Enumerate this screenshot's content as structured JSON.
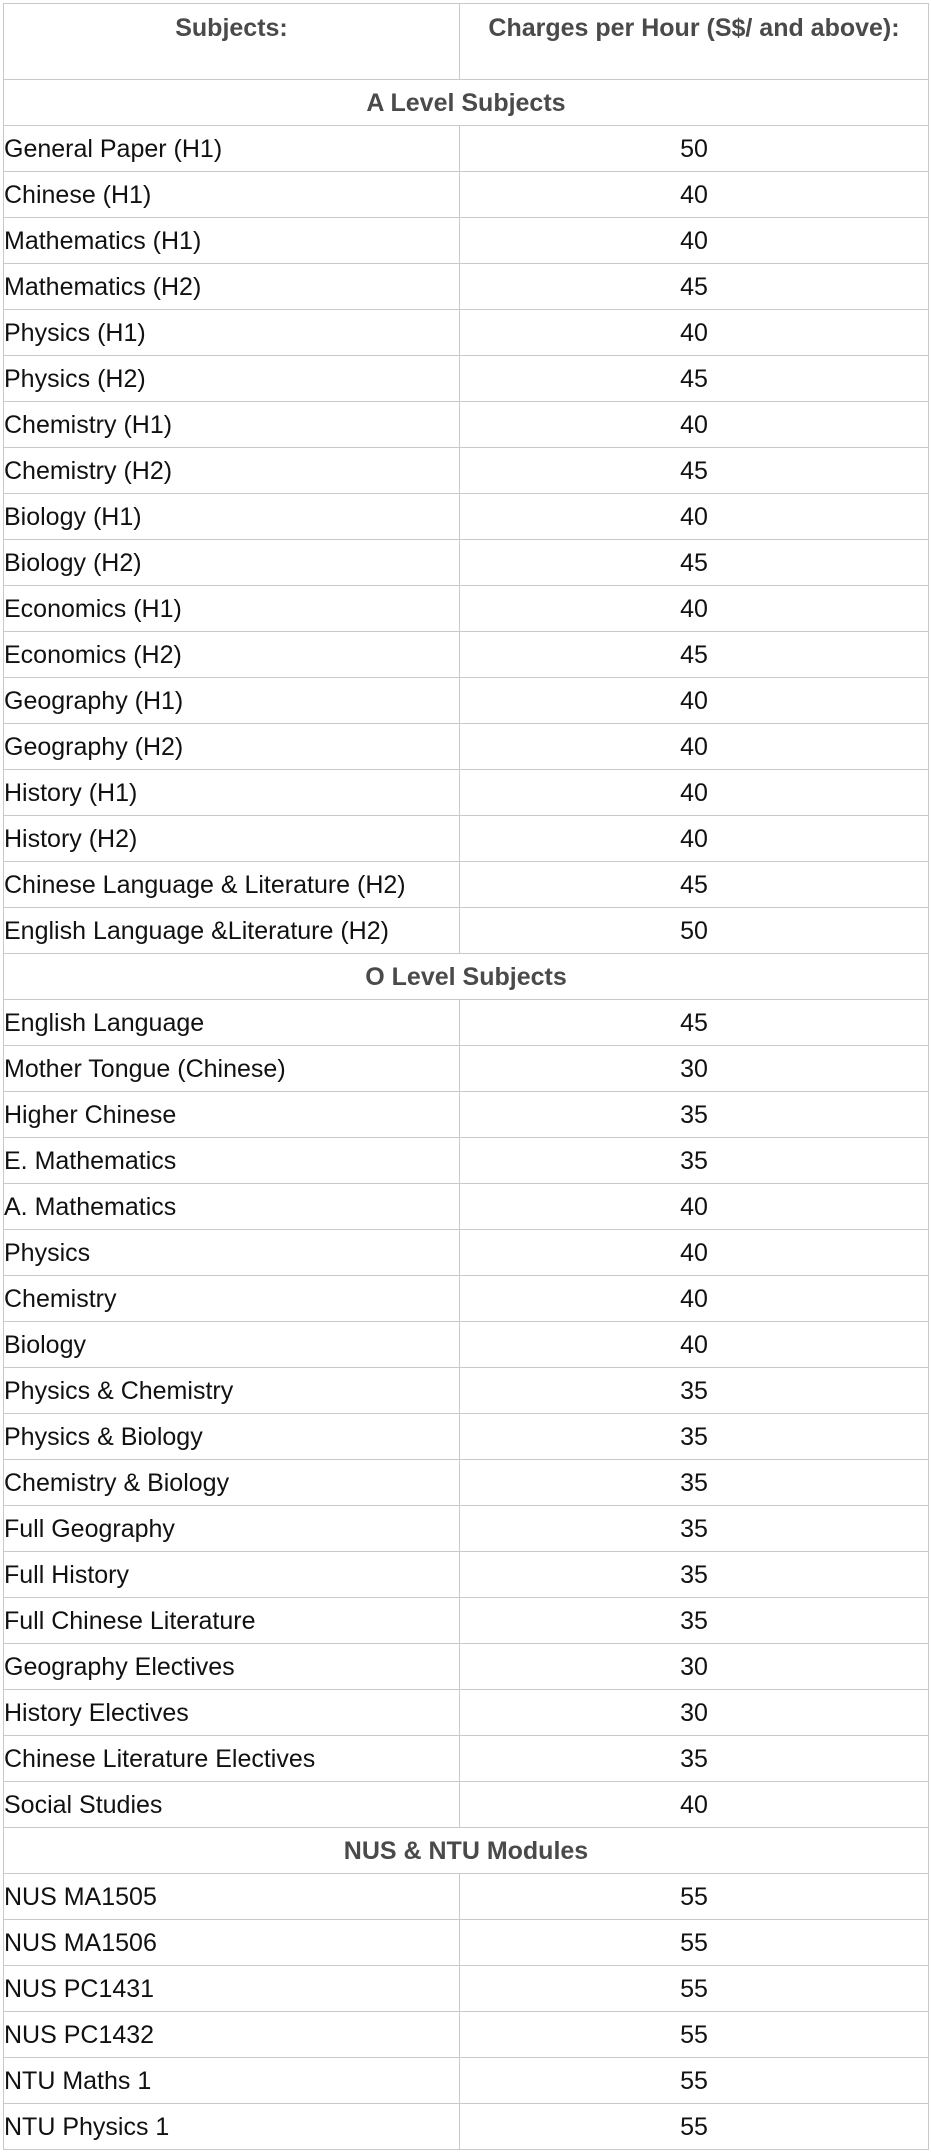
{
  "header": {
    "subjects_label": "Subjects:",
    "charges_label": "Charges per Hour (S$/ and above):"
  },
  "sections": [
    {
      "title": "A Level Subjects",
      "rows": [
        {
          "subject": "General Paper (H1)",
          "price": "50"
        },
        {
          "subject": "Chinese (H1)",
          "price": "40"
        },
        {
          "subject": "Mathematics (H1)",
          "price": "40"
        },
        {
          "subject": "Mathematics (H2)",
          "price": "45"
        },
        {
          "subject": "Physics (H1)",
          "price": "40"
        },
        {
          "subject": "Physics (H2)",
          "price": "45"
        },
        {
          "subject": "Chemistry (H1)",
          "price": "40"
        },
        {
          "subject": "Chemistry (H2)",
          "price": "45"
        },
        {
          "subject": "Biology (H1)",
          "price": "40"
        },
        {
          "subject": "Biology (H2)",
          "price": "45"
        },
        {
          "subject": "Economics (H1)",
          "price": "40"
        },
        {
          "subject": "Economics (H2)",
          "price": "45"
        },
        {
          "subject": "Geography (H1)",
          "price": "40"
        },
        {
          "subject": "Geography (H2)",
          "price": "40"
        },
        {
          "subject": "History (H1)",
          "price": "40"
        },
        {
          "subject": "History (H2)",
          "price": "40"
        },
        {
          "subject": "Chinese Language & Literature (H2)",
          "price": "45"
        },
        {
          "subject": "English Language &Literature (H2)",
          "price": "50"
        }
      ]
    },
    {
      "title": "O Level Subjects",
      "rows": [
        {
          "subject": "English Language",
          "price": "45"
        },
        {
          "subject": "Mother Tongue (Chinese)",
          "price": "30"
        },
        {
          "subject": "Higher Chinese",
          "price": "35"
        },
        {
          "subject": "E. Mathematics",
          "price": "35"
        },
        {
          "subject": "A. Mathematics",
          "price": "40"
        },
        {
          "subject": "Physics",
          "price": "40"
        },
        {
          "subject": "Chemistry",
          "price": "40"
        },
        {
          "subject": "Biology",
          "price": "40"
        },
        {
          "subject": "Physics & Chemistry",
          "price": "35"
        },
        {
          "subject": "Physics & Biology",
          "price": "35"
        },
        {
          "subject": "Chemistry & Biology",
          "price": "35"
        },
        {
          "subject": "Full Geography",
          "price": "35"
        },
        {
          "subject": "Full History",
          "price": "35"
        },
        {
          "subject": "Full Chinese Literature",
          "price": "35"
        },
        {
          "subject": "Geography Electives",
          "price": "30"
        },
        {
          "subject": "History Electives",
          "price": "30"
        },
        {
          "subject": "Chinese Literature Electives",
          "price": "35"
        },
        {
          "subject": "Social Studies",
          "price": "40"
        }
      ]
    },
    {
      "title": "NUS & NTU Modules",
      "rows": [
        {
          "subject": "NUS MA1505",
          "price": "55"
        },
        {
          "subject": "NUS MA1506",
          "price": "55"
        },
        {
          "subject": "NUS PC1431",
          "price": "55"
        },
        {
          "subject": "NUS PC1432",
          "price": "55"
        },
        {
          "subject": "NTU Maths 1",
          "price": "55"
        },
        {
          "subject": "NTU Physics 1",
          "price": "55"
        }
      ]
    }
  ]
}
